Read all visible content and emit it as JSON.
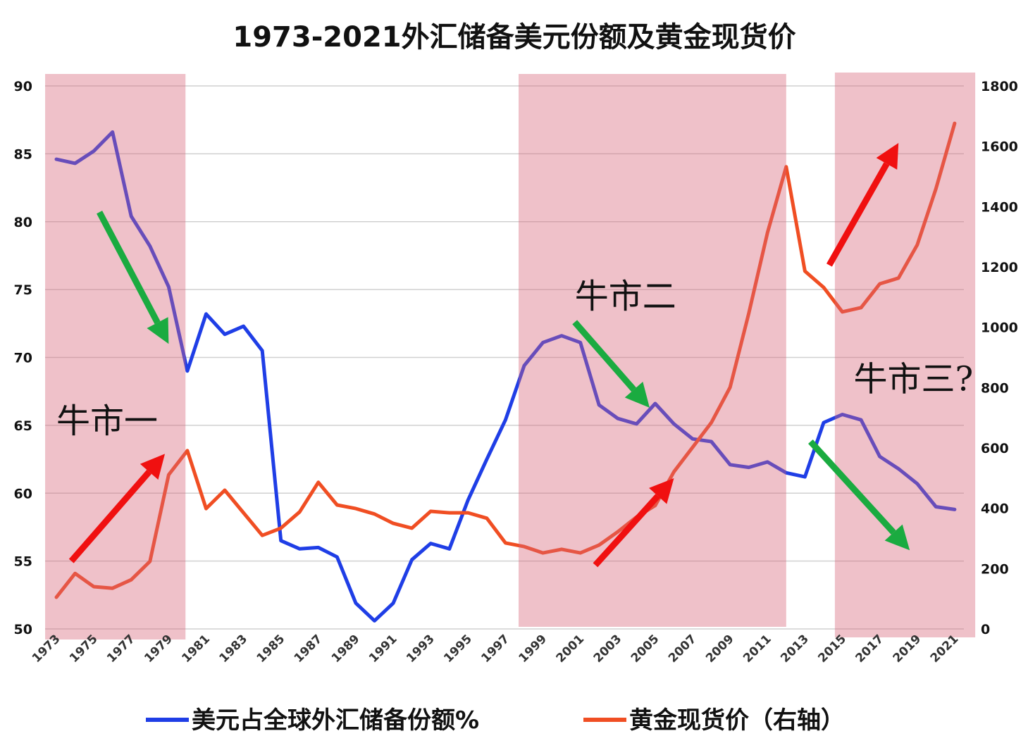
{
  "chart_data": {
    "type": "line",
    "title": "1973-2021外汇储备美元份额及黄金现货价",
    "x": [
      1973,
      1974,
      1975,
      1976,
      1977,
      1978,
      1979,
      1980,
      1981,
      1982,
      1983,
      1984,
      1985,
      1986,
      1987,
      1988,
      1989,
      1990,
      1991,
      1992,
      1993,
      1994,
      1995,
      1996,
      1997,
      1998,
      1999,
      2000,
      2001,
      2002,
      2003,
      2004,
      2005,
      2006,
      2007,
      2008,
      2009,
      2010,
      2011,
      2012,
      2013,
      2014,
      2015,
      2016,
      2017,
      2018,
      2019,
      2020,
      2021
    ],
    "xtick_labels": [
      "1973",
      "1975",
      "1977",
      "1979",
      "1981",
      "1983",
      "1985",
      "1987",
      "1989",
      "1991",
      "1993",
      "1995",
      "1997",
      "1999",
      "2001",
      "2003",
      "2005",
      "2007",
      "2009",
      "2011",
      "2013",
      "2015",
      "2017",
      "2019",
      "2021"
    ],
    "y_left": {
      "ylim": [
        50,
        90
      ],
      "ticks": [
        "50",
        "55",
        "60",
        "65",
        "70",
        "75",
        "80",
        "85",
        "90"
      ]
    },
    "y_right": {
      "ylim": [
        0,
        1800
      ],
      "ticks": [
        "0",
        "200",
        "400",
        "600",
        "800",
        "1000",
        "1200",
        "1400",
        "1600",
        "1800"
      ]
    },
    "grid": true,
    "legend_position": "bottom",
    "series": [
      {
        "name": "美元占全球外汇储备份额%",
        "axis": "left",
        "color": "#1f3ee6",
        "values": [
          84.6,
          84.3,
          85.2,
          86.6,
          80.4,
          78.2,
          75.2,
          69.0,
          73.2,
          71.7,
          72.3,
          70.5,
          56.5,
          55.9,
          56.0,
          55.3,
          51.9,
          50.6,
          51.9,
          55.1,
          56.3,
          55.9,
          59.5,
          62.5,
          65.4,
          69.4,
          71.1,
          71.6,
          71.1,
          66.5,
          65.5,
          65.1,
          66.6,
          65.1,
          64.0,
          63.8,
          62.1,
          61.9,
          62.3,
          61.5,
          61.2,
          65.2,
          65.8,
          65.4,
          62.7,
          61.8,
          60.7,
          59.0,
          58.8
        ]
      },
      {
        "name": "黄金现货价（右轴）",
        "axis": "right",
        "color": "#f04e23",
        "values": [
          105,
          184,
          140,
          135,
          163,
          224,
          511,
          591,
          399,
          460,
          385,
          310,
          334,
          388,
          486,
          411,
          399,
          381,
          350,
          334,
          390,
          385,
          385,
          367,
          285,
          273,
          252,
          264,
          252,
          278,
          322,
          371,
          409,
          521,
          602,
          684,
          801,
          1046,
          1314,
          1532,
          1186,
          1132,
          1051,
          1065,
          1144,
          1163,
          1273,
          1459,
          1676
        ]
      }
    ],
    "shaded_regions": [
      {
        "from": 1972.4,
        "to": 1979.9,
        "color": "#d76478"
      },
      {
        "from": 1997.7,
        "to": 2012.0,
        "color": "#d76478"
      },
      {
        "from": 2014.6,
        "to": 2022.1,
        "color": "#d76478"
      }
    ],
    "annotations": [
      {
        "text": "牛市一",
        "year": 1973.0,
        "value": 65.3
      },
      {
        "text": "牛市二",
        "year": 2000.7,
        "value": 74.5
      },
      {
        "text": "牛市三?",
        "year": 2015.6,
        "value": 68.4
      }
    ],
    "arrows": [
      {
        "color": "#1aab40",
        "from": [
          1975.3,
          80.7
        ],
        "to": [
          1979.0,
          71.0
        ]
      },
      {
        "color": "#f01010",
        "from": [
          1973.8,
          55.0
        ],
        "to": [
          1978.8,
          62.9
        ]
      },
      {
        "color": "#1aab40",
        "from": [
          2000.7,
          72.6
        ],
        "to": [
          2004.7,
          66.3
        ]
      },
      {
        "color": "#f01010",
        "from": [
          2001.8,
          54.7
        ],
        "to": [
          2006.0,
          61.1
        ]
      },
      {
        "color": "#f01010",
        "from": [
          2014.3,
          76.8
        ],
        "to": [
          2018.0,
          85.8
        ]
      },
      {
        "color": "#1aab40",
        "from": [
          2013.3,
          63.8
        ],
        "to": [
          2018.6,
          55.8
        ]
      }
    ]
  }
}
